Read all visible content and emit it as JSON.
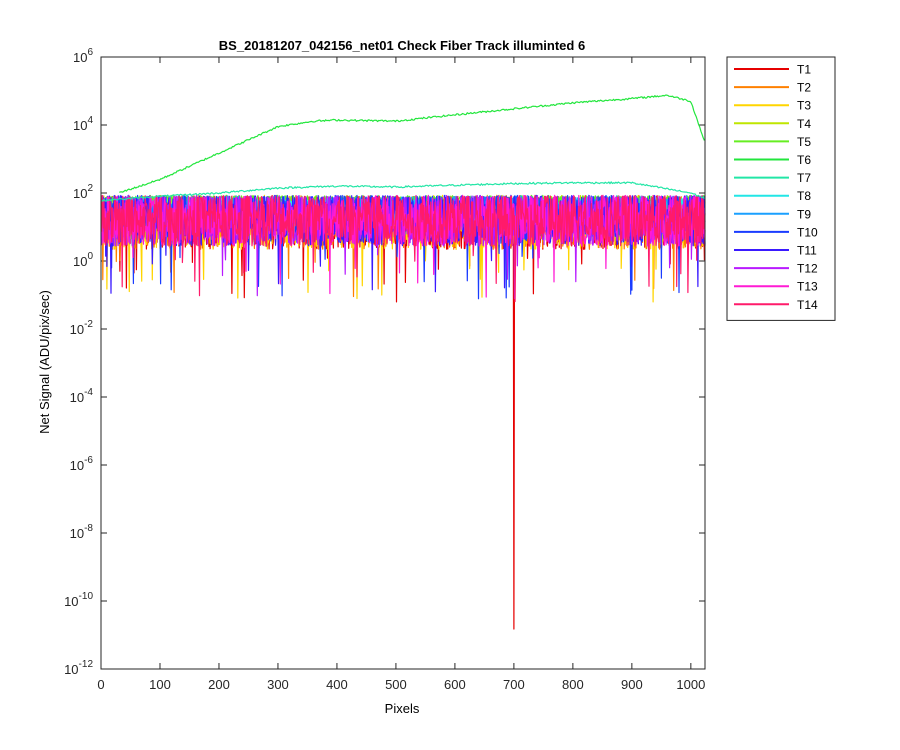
{
  "figure": {
    "background": "#ffffff"
  },
  "chart_data": {
    "type": "line",
    "title": "BS_20181207_042156_net01    Check Fiber      Track illuminted 6",
    "xlabel": "Pixels",
    "ylabel": "Net Signal (ADU/pix/sec)",
    "xlim": [
      0,
      1024
    ],
    "ylim_exp": [
      -12,
      6
    ],
    "yscale": "log",
    "y_base": "10",
    "x_ticks": [
      0,
      100,
      200,
      300,
      400,
      500,
      600,
      700,
      800,
      900,
      1000
    ],
    "y_tick_exponents": [
      -12,
      -10,
      -8,
      -6,
      -4,
      -2,
      0,
      2,
      4,
      6
    ],
    "legend_position": "outside-right",
    "annotations": {
      "T1_dip": {
        "x": 700,
        "y": 1.5e-11
      }
    },
    "series": [
      {
        "name": "T1",
        "color": "#e60000",
        "level_y": 20,
        "noise": "high"
      },
      {
        "name": "T2",
        "color": "#ff8000",
        "level_y": 20,
        "noise": "high"
      },
      {
        "name": "T3",
        "color": "#ffd500",
        "level_y": 20,
        "noise": "high"
      },
      {
        "name": "T4",
        "color": "#bfe600",
        "level_y": 40,
        "noise": "medium"
      },
      {
        "name": "T5",
        "color": "#66ee22",
        "level_y": 70,
        "noise": "low"
      },
      {
        "name": "T6",
        "color": "#22e63c",
        "profile": [
          [
            30,
            100
          ],
          [
            100,
            250
          ],
          [
            200,
            1500
          ],
          [
            300,
            9000
          ],
          [
            360,
            13000
          ],
          [
            400,
            14000
          ],
          [
            500,
            13000
          ],
          [
            600,
            20000
          ],
          [
            700,
            30000
          ],
          [
            800,
            45000
          ],
          [
            900,
            60000
          ],
          [
            960,
            75000
          ],
          [
            1000,
            50000
          ],
          [
            1024,
            3000
          ]
        ]
      },
      {
        "name": "T7",
        "color": "#22e6a6",
        "profile": [
          [
            0,
            60
          ],
          [
            100,
            80
          ],
          [
            200,
            100
          ],
          [
            300,
            140
          ],
          [
            400,
            160
          ],
          [
            500,
            150
          ],
          [
            600,
            170
          ],
          [
            700,
            190
          ],
          [
            800,
            200
          ],
          [
            900,
            200
          ],
          [
            1000,
            100
          ],
          [
            1024,
            70
          ]
        ]
      },
      {
        "name": "T8",
        "color": "#22e6e6",
        "level_y": 50,
        "noise": "low"
      },
      {
        "name": "T9",
        "color": "#1aa0ff",
        "level_y": 40,
        "noise": "medium"
      },
      {
        "name": "T10",
        "color": "#1a3cff",
        "level_y": 30,
        "noise": "high"
      },
      {
        "name": "T11",
        "color": "#3a1aff",
        "level_y": 25,
        "noise": "high"
      },
      {
        "name": "T12",
        "color": "#b81aff",
        "level_y": 25,
        "noise": "high"
      },
      {
        "name": "T13",
        "color": "#ff1ad4",
        "level_y": 25,
        "noise": "high"
      },
      {
        "name": "T14",
        "color": "#ff1a6a",
        "level_y": 25,
        "noise": "high"
      }
    ]
  }
}
